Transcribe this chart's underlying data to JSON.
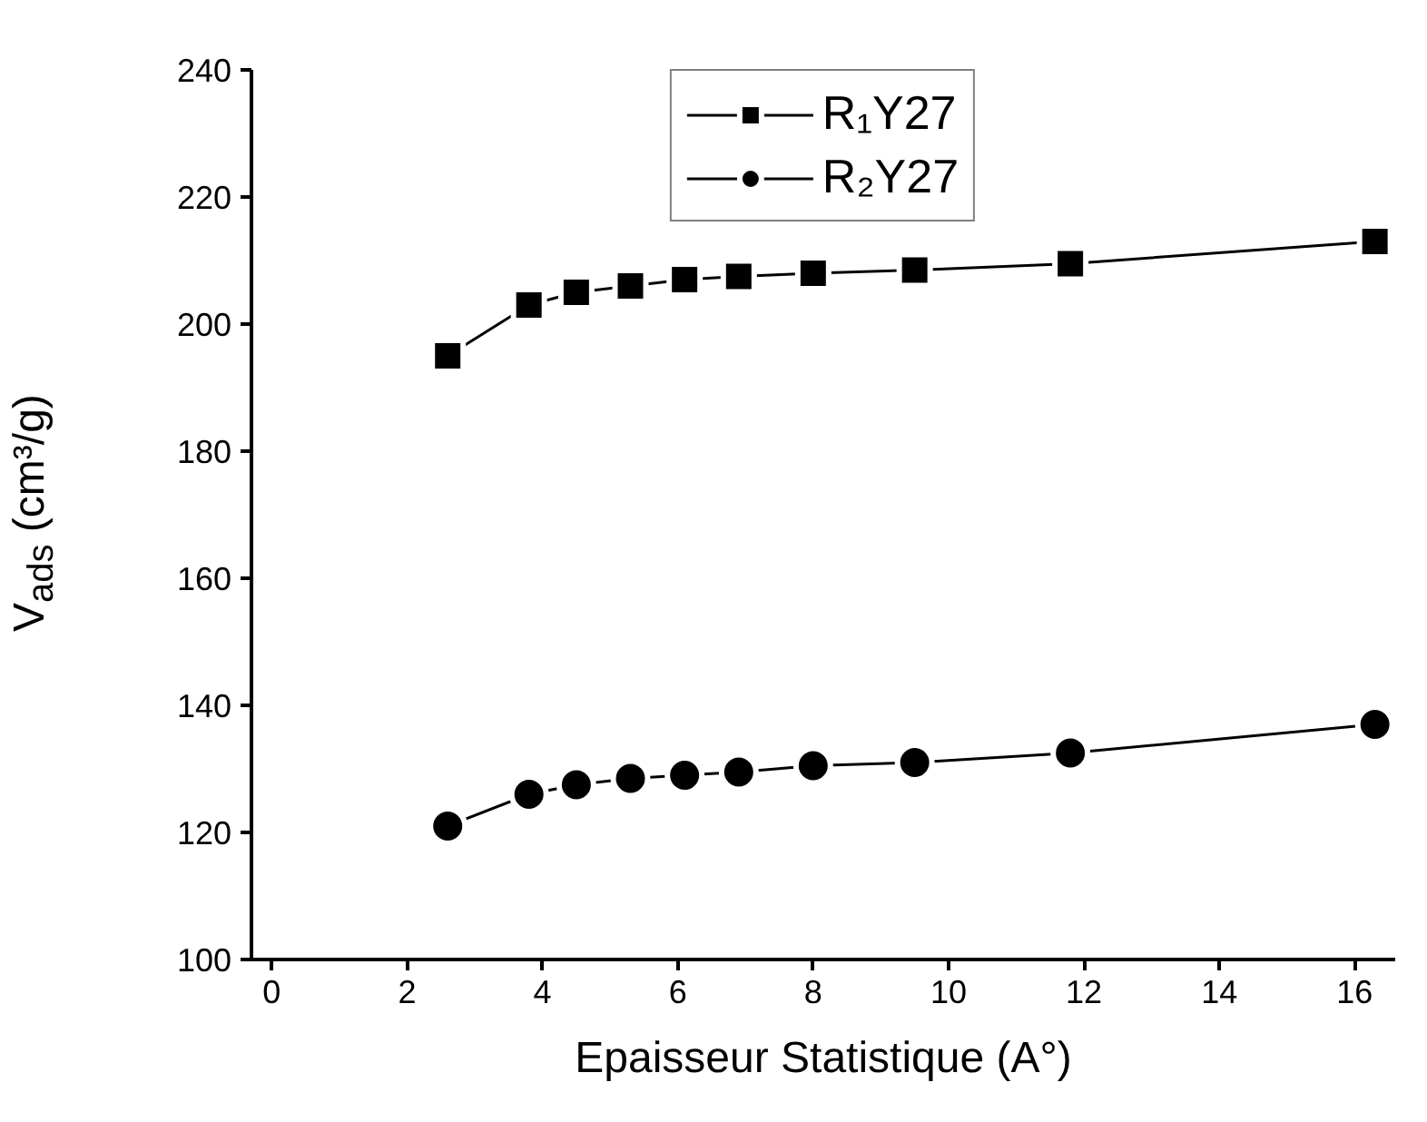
{
  "chart_data": {
    "type": "line",
    "xlabel": "Epaisseur Statistique (A°)",
    "ylabel": "V$_{ads}$ (cm³/g)",
    "x": [
      2.6,
      3.8,
      4.5,
      5.3,
      6.1,
      6.9,
      8.0,
      9.5,
      11.8,
      16.3
    ],
    "series": [
      {
        "name": "R₁Y27",
        "color": "#000000",
        "marker": "square",
        "values": [
          195,
          203,
          205,
          206,
          207,
          207.5,
          208,
          208.5,
          209.5,
          213
        ]
      },
      {
        "name": "R₂Y27",
        "color": "#000000",
        "marker": "circle",
        "values": [
          121,
          126,
          127.5,
          128.5,
          129,
          129.5,
          130.5,
          131,
          132.5,
          137
        ]
      }
    ],
    "xlim": [
      -0.3,
      16.6
    ],
    "ylim": [
      100,
      240
    ],
    "xticks": [
      0,
      2,
      4,
      6,
      8,
      10,
      12,
      14,
      16
    ],
    "yticks": [
      100,
      120,
      140,
      160,
      180,
      200,
      220,
      240
    ],
    "grid": false,
    "legend": "top",
    "line_style": "solid"
  }
}
